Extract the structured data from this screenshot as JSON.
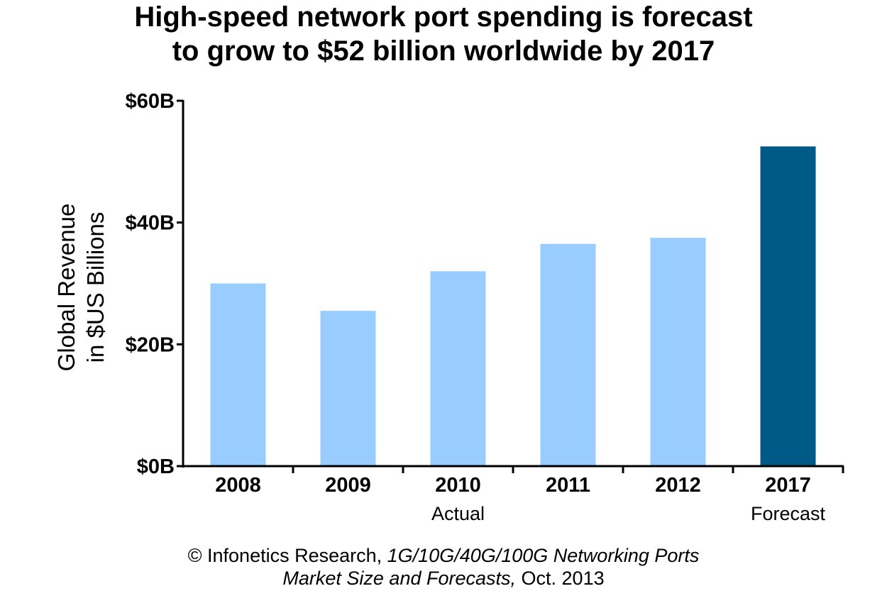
{
  "title_lines": [
    "High-speed network port spending is forecast",
    "to grow to $52 billion worldwide by 2017"
  ],
  "chart_data": {
    "type": "bar",
    "categories": [
      "2008",
      "2009",
      "2010",
      "2011",
      "2012",
      "2017"
    ],
    "values": [
      30,
      25.5,
      32,
      36.5,
      37.5,
      52.5
    ],
    "bar_colors": [
      "#99ccff",
      "#99ccff",
      "#99ccff",
      "#99ccff",
      "#99ccff",
      "#005a87"
    ],
    "ylabel_lines": [
      "Global Revenue",
      "in $US Billions"
    ],
    "ylim": [
      0,
      60
    ],
    "yticks": [
      0,
      20,
      40,
      60
    ],
    "ytick_labels": [
      "$0B",
      "$20B",
      "$40B",
      "$60B"
    ],
    "group_labels": [
      {
        "label": "Actual",
        "under_category": "2010"
      },
      {
        "label": "Forecast",
        "under_category": "2017"
      }
    ],
    "grid": false,
    "legend": "none"
  },
  "source": {
    "line1_prefix": "© Infonetics Research, ",
    "line1_italic": "1G/10G/40G/100G Networking Ports",
    "line2_italic": "Market Size and Forecasts,",
    "line2_suffix": " Oct. 2013"
  }
}
